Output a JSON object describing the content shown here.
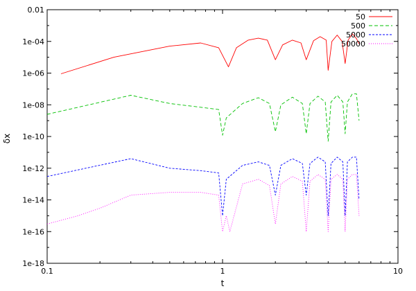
{
  "chart_data": {
    "type": "line",
    "title": "",
    "xlabel": "t",
    "ylabel": "δx",
    "x_scale": "log",
    "y_scale": "log",
    "xlim": [
      0.1,
      10
    ],
    "ylim": [
      1e-18,
      0.01
    ],
    "x_ticks": [
      {
        "value": 0.1,
        "label": "0.1"
      },
      {
        "value": 1,
        "label": "1"
      },
      {
        "value": 10,
        "label": "10"
      }
    ],
    "y_ticks": [
      {
        "value": 1e-18,
        "label": "1e-18"
      },
      {
        "value": 1e-16,
        "label": "1e-16"
      },
      {
        "value": 1e-14,
        "label": "1e-14"
      },
      {
        "value": 1e-12,
        "label": "1e-12"
      },
      {
        "value": 1e-10,
        "label": "1e-10"
      },
      {
        "value": 1e-08,
        "label": "1e-08"
      },
      {
        "value": 1e-06,
        "label": "1e-06"
      },
      {
        "value": 0.0001,
        "label": "1e-04"
      },
      {
        "value": 0.01,
        "label": "0.01"
      }
    ],
    "legend_position": "top-right",
    "grid": false,
    "series": [
      {
        "name": "50",
        "color": "#ff0000",
        "dash": "solid",
        "x": [
          0.12,
          0.24,
          0.5,
          0.75,
          0.95,
          1.08,
          1.2,
          1.4,
          1.6,
          1.8,
          2.0,
          2.2,
          2.5,
          2.8,
          3.0,
          3.3,
          3.6,
          3.9,
          4.0,
          4.2,
          4.5,
          4.8,
          5.0,
          5.2,
          5.5,
          5.8,
          6.0
        ],
        "y": [
          9e-07,
          1e-05,
          5e-05,
          8e-05,
          4e-05,
          2.5e-06,
          4e-05,
          0.00012,
          0.00016,
          0.00012,
          7e-06,
          6e-05,
          0.00012,
          8e-05,
          7e-06,
          0.00011,
          0.0002,
          0.00012,
          1.5e-06,
          0.0001,
          0.00025,
          0.0001,
          4e-06,
          0.00012,
          0.0003,
          0.00015,
          7e-05
        ]
      },
      {
        "name": "500",
        "color": "#00c000",
        "dash": "5,3",
        "x": [
          0.1,
          0.3,
          0.5,
          0.75,
          0.95,
          1.0,
          1.05,
          1.3,
          1.6,
          1.85,
          2.0,
          2.15,
          2.5,
          2.85,
          3.0,
          3.15,
          3.5,
          3.85,
          4.0,
          4.15,
          4.5,
          4.85,
          5.0,
          5.15,
          5.5,
          5.8,
          6.0
        ],
        "y": [
          2.5e-09,
          4e-08,
          1.2e-08,
          7e-09,
          5e-09,
          1.2e-10,
          1.5e-09,
          1.2e-08,
          2.8e-08,
          1.2e-08,
          2e-10,
          1e-08,
          3e-08,
          1.2e-08,
          1.5e-10,
          1.2e-08,
          3.5e-08,
          1.5e-08,
          5e-11,
          1.5e-08,
          4e-08,
          1.5e-08,
          1.5e-10,
          1.5e-08,
          5e-08,
          5e-08,
          1e-09
        ]
      },
      {
        "name": "5000",
        "color": "#0000ff",
        "dash": "3,2",
        "x": [
          0.1,
          0.3,
          0.5,
          0.75,
          0.95,
          1.0,
          1.05,
          1.3,
          1.6,
          1.85,
          2.0,
          2.15,
          2.5,
          2.85,
          3.0,
          3.15,
          3.5,
          3.85,
          4.0,
          4.15,
          4.5,
          4.85,
          5.0,
          5.15,
          5.5,
          5.8,
          6.0
        ],
        "y": [
          3e-13,
          4e-12,
          1e-12,
          7e-13,
          5e-13,
          1e-15,
          2e-13,
          1.5e-12,
          2.5e-12,
          1.5e-12,
          2e-14,
          1.5e-12,
          4e-12,
          2e-12,
          2e-14,
          2e-12,
          5e-12,
          2.5e-12,
          1e-15,
          2e-12,
          5e-12,
          2.5e-12,
          1e-15,
          2.5e-12,
          5e-12,
          5e-12,
          1e-14
        ]
      },
      {
        "name": "50000",
        "color": "#ff00ff",
        "dash": "1,2",
        "x": [
          0.1,
          0.15,
          0.2,
          0.3,
          0.5,
          0.75,
          0.95,
          1.0,
          1.05,
          1.1,
          1.3,
          1.6,
          1.85,
          2.0,
          2.15,
          2.5,
          2.85,
          3.0,
          3.15,
          3.5,
          3.85,
          4.0,
          4.15,
          4.5,
          4.85,
          5.0,
          5.15,
          5.5,
          5.8,
          6.0
        ],
        "y": [
          3e-16,
          1e-15,
          3e-15,
          2e-14,
          3e-14,
          3e-14,
          2e-14,
          1e-16,
          1e-15,
          1e-16,
          1e-13,
          2e-13,
          8e-14,
          3e-16,
          1e-13,
          3e-13,
          1.5e-13,
          1e-16,
          1.5e-13,
          4e-13,
          2e-13,
          1e-16,
          2e-13,
          4e-13,
          2e-13,
          1e-16,
          2e-13,
          4e-13,
          4e-13,
          1e-15
        ]
      }
    ]
  }
}
